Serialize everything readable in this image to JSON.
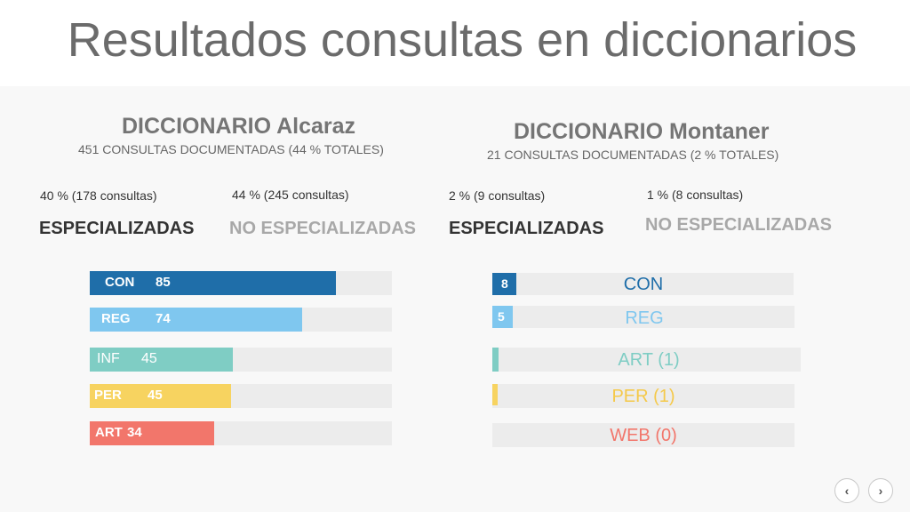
{
  "title": "Resultados consultas en diccionarios",
  "alcaraz": {
    "title": "DICCIONARIO Alcaraz",
    "subtitle": "451 CONSULTAS DOCUMENTADAS (44 % TOTALES)",
    "esp_pct": "40 % (178 consultas)",
    "esp_label": "ESPECIALIZADAS",
    "noesp_pct": "44 % (245 consultas)",
    "noesp_label": "NO ESPECIALIZADAS",
    "bars": [
      {
        "label": "CON",
        "value": "85",
        "color": "#1f6ea9"
      },
      {
        "label": "REG",
        "value": "74",
        "color": "#7fc7ef"
      },
      {
        "label": "INF",
        "value": "45",
        "color": "#7fcdc4"
      },
      {
        "label": "PER",
        "value": "45",
        "color": "#f7d360"
      },
      {
        "label": "ART",
        "value": "34",
        "color": "#f2766b"
      }
    ]
  },
  "montaner": {
    "title": "DICCIONARIO Montaner",
    "subtitle": "21 CONSULTAS DOCUMENTADAS (2 % TOTALES)",
    "esp_pct": "2 % (9 consultas)",
    "esp_label": "ESPECIALIZADAS",
    "noesp_pct": "1 % (8 consultas)",
    "noesp_label": "NO ESPECIALIZADAS",
    "bars": [
      {
        "label": "CON",
        "value": "8",
        "color": "#1f6ea9"
      },
      {
        "label": "REG",
        "value": "5",
        "color": "#7fc7ef"
      },
      {
        "label": "ART (1)",
        "value": "",
        "color": "#7fcdc4"
      },
      {
        "label": "PER (1)",
        "value": "",
        "color": "#f7d360"
      },
      {
        "label": "WEB (0)",
        "value": "",
        "color": "#f2766b"
      }
    ]
  },
  "nav": {
    "prev": "‹",
    "next": "›"
  }
}
